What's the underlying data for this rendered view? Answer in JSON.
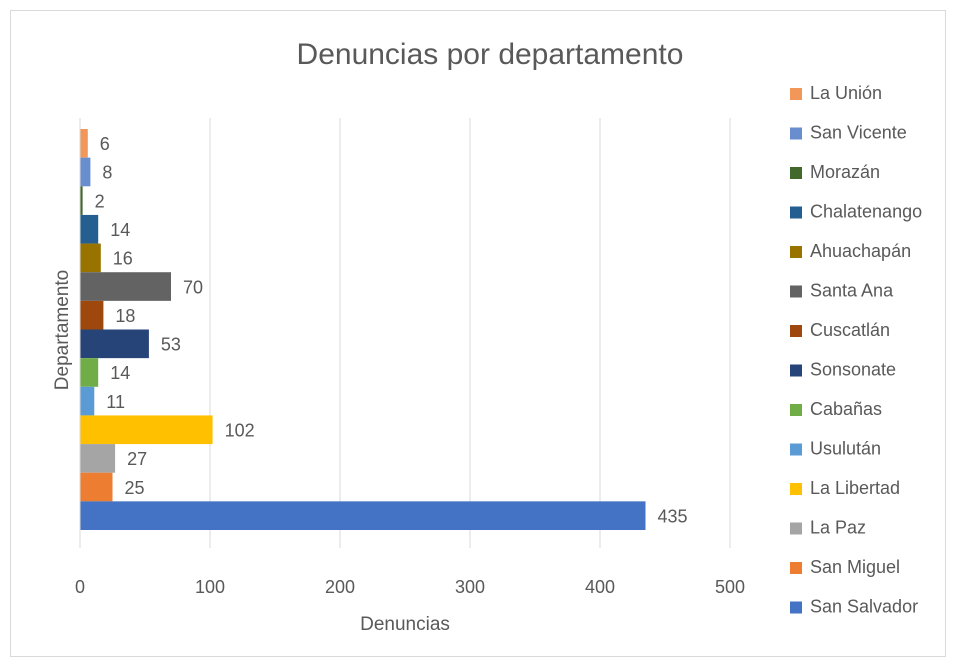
{
  "chart_data": {
    "type": "bar",
    "orientation": "horizontal",
    "title": "Denuncias por departamento",
    "x_label": "Denuncias",
    "y_label": "Departamento",
    "xlim": [
      0,
      500
    ],
    "xticks": [
      0,
      100,
      200,
      300,
      400,
      500
    ],
    "grid": true,
    "legend": "right",
    "series": [
      {
        "name": "La Unión",
        "color": "#F1975A",
        "values": [
          6
        ]
      },
      {
        "name": "San Vicente",
        "color": "#698ED0",
        "values": [
          8
        ]
      },
      {
        "name": "Morazán",
        "color": "#43682B",
        "values": [
          2
        ]
      },
      {
        "name": "Chalatenango",
        "color": "#255E91",
        "values": [
          14
        ]
      },
      {
        "name": "Ahuachapán",
        "color": "#997300",
        "values": [
          16
        ]
      },
      {
        "name": "Santa Ana",
        "color": "#636363",
        "values": [
          70
        ]
      },
      {
        "name": "Cuscatlán",
        "color": "#9E480E",
        "values": [
          18
        ]
      },
      {
        "name": "Sonsonate",
        "color": "#264478",
        "values": [
          53
        ]
      },
      {
        "name": "Cabañas",
        "color": "#70AD47",
        "values": [
          14
        ]
      },
      {
        "name": "Usulután",
        "color": "#5B9BD5",
        "values": [
          11
        ]
      },
      {
        "name": "La Libertad",
        "color": "#FFC000",
        "values": [
          102
        ]
      },
      {
        "name": "La Paz",
        "color": "#A5A5A5",
        "values": [
          27
        ]
      },
      {
        "name": "San Miguel",
        "color": "#ED7D31",
        "values": [
          25
        ]
      },
      {
        "name": "San Salvador",
        "color": "#4472C4",
        "values": [
          435
        ]
      }
    ]
  }
}
